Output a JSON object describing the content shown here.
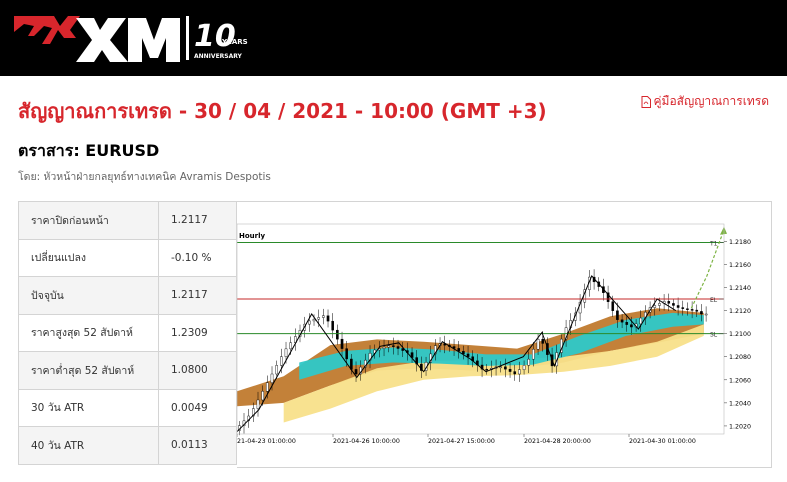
{
  "header": {
    "brand": "XM",
    "anniversary_number": "10",
    "years_label": "YEARS",
    "anniversary_label": "ANNIVERSARY",
    "background_color": "#000000"
  },
  "page": {
    "title": "สัญญาณการเทรด - 30 / 04 / 2021 - 10:00 (GMT +3)",
    "guide_link": "คู่มือสัญญาณการเทรด",
    "instrument": "ตราสาร: EURUSD",
    "author": "โดย: หัวหน้าฝ่ายกลยุทธ์ทางเทคนิค Avramis Despotis",
    "accent_color": "#d7262c"
  },
  "stats": [
    {
      "label": "ราคาปิดก่อนหน้า",
      "value": "1.2117"
    },
    {
      "label": "เปลี่ยนแปลง",
      "value": "-0.10 %"
    },
    {
      "label": "ปัจจุบัน",
      "value": "1.2117"
    },
    {
      "label": "ราคาสูงสุด 52 สัปดาห์",
      "value": "1.2309"
    },
    {
      "label": "ราคาต่ำสุด 52 สัปดาห์",
      "value": "1.0800"
    },
    {
      "label": "30 วัน ATR",
      "value": "0.0049"
    },
    {
      "label": "40 วัน ATR",
      "value": "0.0113"
    }
  ],
  "chart_data": {
    "type": "line",
    "timeframe_label": "Hourly",
    "x_tick_labels": [
      "21-04-23 01:00:00",
      "2021-04-26 10:00:00",
      "2021-04-27 15:00:00",
      "2021-04-28 20:00:00",
      "2021-04-30 01:00:00"
    ],
    "ylim": [
      1.2013,
      1.2195
    ],
    "yticks": [
      1.202,
      1.204,
      1.206,
      1.208,
      1.21,
      1.212,
      1.214,
      1.216,
      1.218
    ],
    "levels": [
      {
        "name": "T1",
        "value": 1.2179,
        "color": "#2a8a2a"
      },
      {
        "name": "EL",
        "value": 1.213,
        "color": "#c62828"
      },
      {
        "name": "SL",
        "value": 1.21,
        "color": "#2a8a2a"
      }
    ],
    "price_path": [
      {
        "i": 0,
        "v": 1.2016
      },
      {
        "i": 10,
        "v": 1.203
      },
      {
        "i": 20,
        "v": 1.2055
      },
      {
        "i": 32,
        "v": 1.2085
      },
      {
        "i": 46,
        "v": 1.211
      },
      {
        "i": 58,
        "v": 1.2116
      },
      {
        "i": 68,
        "v": 1.209
      },
      {
        "i": 77,
        "v": 1.2063
      },
      {
        "i": 88,
        "v": 1.2085
      },
      {
        "i": 100,
        "v": 1.209
      },
      {
        "i": 112,
        "v": 1.2083
      },
      {
        "i": 120,
        "v": 1.2068
      },
      {
        "i": 130,
        "v": 1.2092
      },
      {
        "i": 140,
        "v": 1.2088
      },
      {
        "i": 150,
        "v": 1.208
      },
      {
        "i": 160,
        "v": 1.2068
      },
      {
        "i": 170,
        "v": 1.2072
      },
      {
        "i": 180,
        "v": 1.2065
      },
      {
        "i": 188,
        "v": 1.2075
      },
      {
        "i": 196,
        "v": 1.2098
      },
      {
        "i": 204,
        "v": 1.2072
      },
      {
        "i": 212,
        "v": 1.2103
      },
      {
        "i": 220,
        "v": 1.212
      },
      {
        "i": 228,
        "v": 1.2149
      },
      {
        "i": 236,
        "v": 1.2138
      },
      {
        "i": 246,
        "v": 1.2112
      },
      {
        "i": 256,
        "v": 1.2105
      },
      {
        "i": 266,
        "v": 1.2122
      },
      {
        "i": 276,
        "v": 1.2128
      },
      {
        "i": 286,
        "v": 1.2122
      },
      {
        "i": 296,
        "v": 1.212
      },
      {
        "i": 300,
        "v": 1.2117
      }
    ],
    "zigzag": [
      {
        "i": 0,
        "v": 1.2015
      },
      {
        "i": 14,
        "v": 1.2034
      },
      {
        "i": 48,
        "v": 1.2117
      },
      {
        "i": 77,
        "v": 1.2062
      },
      {
        "i": 92,
        "v": 1.2089
      },
      {
        "i": 104,
        "v": 1.2092
      },
      {
        "i": 120,
        "v": 1.2067
      },
      {
        "i": 132,
        "v": 1.2093
      },
      {
        "i": 150,
        "v": 1.2078
      },
      {
        "i": 160,
        "v": 1.2067
      },
      {
        "i": 184,
        "v": 1.208
      },
      {
        "i": 196,
        "v": 1.2101
      },
      {
        "i": 204,
        "v": 1.2072
      },
      {
        "i": 228,
        "v": 1.215
      },
      {
        "i": 258,
        "v": 1.2104
      },
      {
        "i": 270,
        "v": 1.213
      },
      {
        "i": 282,
        "v": 1.212
      }
    ],
    "forecast": [
      {
        "i": 292,
        "v": 1.2122
      },
      {
        "i": 302,
        "v": 1.215
      },
      {
        "i": 313,
        "v": 1.219
      }
    ],
    "bands": {
      "brown_upper": [
        [
          0,
          1.205
        ],
        [
          30,
          1.2063
        ],
        [
          60,
          1.209
        ],
        [
          90,
          1.2095
        ],
        [
          120,
          1.2093
        ],
        [
          150,
          1.209
        ],
        [
          180,
          1.2087
        ],
        [
          210,
          1.21
        ],
        [
          240,
          1.2115
        ],
        [
          270,
          1.2122
        ],
        [
          300,
          1.2118
        ]
      ],
      "brown_lower": [
        [
          0,
          1.2037
        ],
        [
          30,
          1.204
        ],
        [
          60,
          1.2055
        ],
        [
          90,
          1.2068
        ],
        [
          120,
          1.207
        ],
        [
          150,
          1.2068
        ],
        [
          180,
          1.207
        ],
        [
          210,
          1.2075
        ],
        [
          240,
          1.2085
        ],
        [
          270,
          1.2092
        ],
        [
          300,
          1.21
        ]
      ],
      "cyan_upper": [
        [
          40,
          1.2075
        ],
        [
          70,
          1.2085
        ],
        [
          100,
          1.2088
        ],
        [
          130,
          1.2086
        ],
        [
          160,
          1.2082
        ],
        [
          190,
          1.2082
        ],
        [
          220,
          1.2098
        ],
        [
          250,
          1.2112
        ],
        [
          280,
          1.2118
        ],
        [
          300,
          1.2116
        ]
      ],
      "cyan_lower": [
        [
          40,
          1.206
        ],
        [
          70,
          1.2072
        ],
        [
          100,
          1.2075
        ],
        [
          130,
          1.2074
        ],
        [
          160,
          1.2072
        ],
        [
          190,
          1.2073
        ],
        [
          220,
          1.2083
        ],
        [
          250,
          1.2098
        ],
        [
          280,
          1.2106
        ],
        [
          300,
          1.2108
        ]
      ],
      "yellow_upper": [
        [
          30,
          1.204
        ],
        [
          60,
          1.2055
        ],
        [
          90,
          1.207
        ],
        [
          120,
          1.2076
        ],
        [
          150,
          1.2077
        ],
        [
          180,
          1.2078
        ],
        [
          210,
          1.208
        ],
        [
          240,
          1.2085
        ],
        [
          270,
          1.2093
        ],
        [
          300,
          1.2108
        ]
      ],
      "yellow_lower": [
        [
          30,
          1.2023
        ],
        [
          60,
          1.2035
        ],
        [
          90,
          1.205
        ],
        [
          120,
          1.206
        ],
        [
          150,
          1.2063
        ],
        [
          180,
          1.2064
        ],
        [
          210,
          1.2067
        ],
        [
          240,
          1.2072
        ],
        [
          270,
          1.208
        ],
        [
          300,
          1.2098
        ]
      ]
    },
    "colors": {
      "brown": "#c07a2e",
      "cyan": "#2ec8c8",
      "yellow": "#f8e08a",
      "line": "#000000"
    }
  }
}
